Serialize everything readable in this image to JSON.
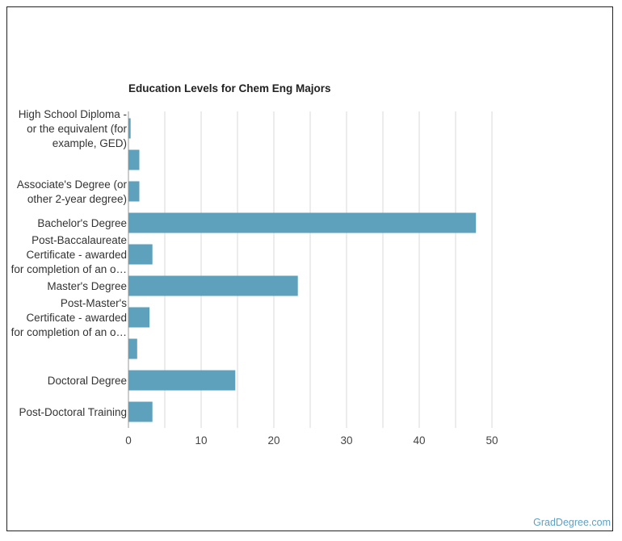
{
  "credit": "GradDegree.com",
  "chart_data": {
    "type": "bar",
    "orientation": "horizontal",
    "title": "Education Levels for Chem Eng Majors",
    "xlabel": "",
    "ylabel": "",
    "categories": [
      [
        "High School Diploma -",
        "or the equivalent (for",
        "example, GED)"
      ],
      [
        ""
      ],
      [
        "Associate's Degree (or",
        "other 2-year degree)"
      ],
      [
        "Bachelor's Degree"
      ],
      [
        "Post-Baccalaureate",
        "Certificate - awarded",
        "for completion of an o…"
      ],
      [
        "Master's Degree"
      ],
      [
        "Post-Master's",
        "Certificate - awarded",
        "for completion of an o…"
      ],
      [
        ""
      ],
      [
        "Doctoral Degree"
      ],
      [
        "Post-Doctoral Training"
      ]
    ],
    "values": [
      0.3,
      1.5,
      1.5,
      47.8,
      3.3,
      23.3,
      2.9,
      1.2,
      14.7,
      3.3
    ],
    "xlim": [
      0,
      50
    ],
    "xticks": [
      0,
      10,
      20,
      30,
      40,
      50
    ],
    "grid": "vertical",
    "bar_color": "#5ea1bd",
    "grid_color": "#d9d9d9"
  }
}
